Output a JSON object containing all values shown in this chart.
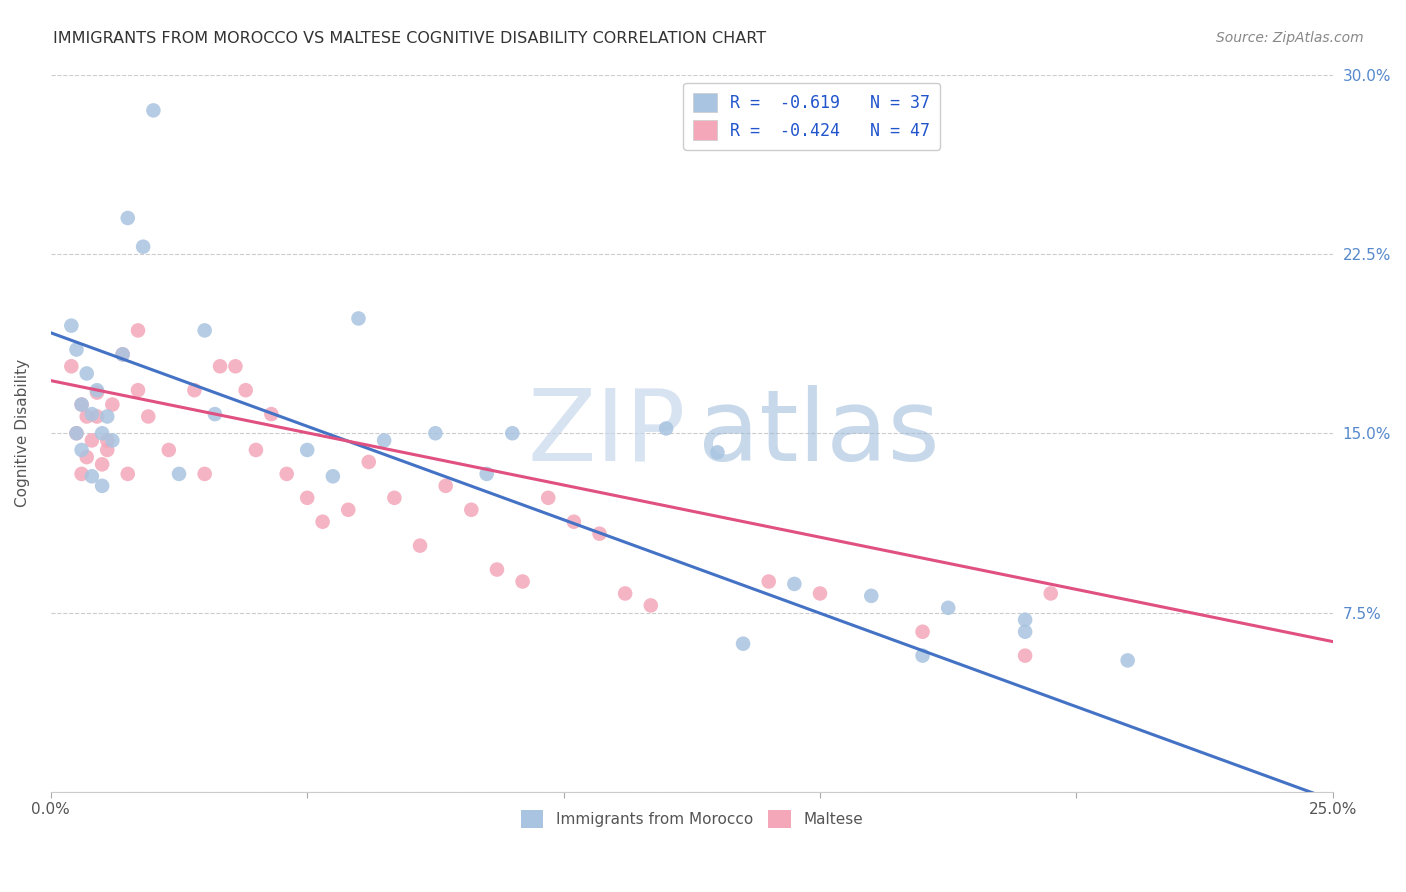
{
  "title": "IMMIGRANTS FROM MOROCCO VS MALTESE COGNITIVE DISABILITY CORRELATION CHART",
  "source": "Source: ZipAtlas.com",
  "ylabel": "Cognitive Disability",
  "color_blue": "#a8c4e0",
  "color_pink": "#f4a7b9",
  "color_blue_line": "#4472c4",
  "color_pink_line": "#e05080",
  "blue_scatter_x": [
    0.02,
    0.015,
    0.018,
    0.004,
    0.005,
    0.007,
    0.009,
    0.006,
    0.008,
    0.011,
    0.005,
    0.01,
    0.012,
    0.014,
    0.006,
    0.008,
    0.01,
    0.03,
    0.032,
    0.025,
    0.06,
    0.065,
    0.05,
    0.075,
    0.055,
    0.09,
    0.085,
    0.12,
    0.13,
    0.145,
    0.16,
    0.175,
    0.19,
    0.21,
    0.135,
    0.19,
    0.17
  ],
  "blue_scatter_y": [
    0.285,
    0.24,
    0.228,
    0.195,
    0.185,
    0.175,
    0.168,
    0.162,
    0.158,
    0.157,
    0.15,
    0.15,
    0.147,
    0.183,
    0.143,
    0.132,
    0.128,
    0.193,
    0.158,
    0.133,
    0.198,
    0.147,
    0.143,
    0.15,
    0.132,
    0.15,
    0.133,
    0.152,
    0.142,
    0.087,
    0.082,
    0.077,
    0.067,
    0.055,
    0.062,
    0.072,
    0.057
  ],
  "pink_scatter_x": [
    0.004,
    0.006,
    0.007,
    0.009,
    0.005,
    0.008,
    0.011,
    0.007,
    0.01,
    0.012,
    0.006,
    0.009,
    0.011,
    0.015,
    0.017,
    0.019,
    0.014,
    0.017,
    0.023,
    0.028,
    0.033,
    0.03,
    0.038,
    0.043,
    0.036,
    0.04,
    0.046,
    0.05,
    0.053,
    0.058,
    0.062,
    0.067,
    0.072,
    0.077,
    0.082,
    0.087,
    0.092,
    0.097,
    0.102,
    0.107,
    0.112,
    0.117,
    0.14,
    0.15,
    0.17,
    0.19,
    0.195
  ],
  "pink_scatter_y": [
    0.178,
    0.162,
    0.157,
    0.167,
    0.15,
    0.147,
    0.143,
    0.14,
    0.137,
    0.162,
    0.133,
    0.157,
    0.147,
    0.133,
    0.168,
    0.157,
    0.183,
    0.193,
    0.143,
    0.168,
    0.178,
    0.133,
    0.168,
    0.158,
    0.178,
    0.143,
    0.133,
    0.123,
    0.113,
    0.118,
    0.138,
    0.123,
    0.103,
    0.128,
    0.118,
    0.093,
    0.088,
    0.123,
    0.113,
    0.108,
    0.083,
    0.078,
    0.088,
    0.083,
    0.067,
    0.057,
    0.083
  ],
  "blue_line_x": [
    0.0,
    0.252
  ],
  "blue_line_y": [
    0.192,
    -0.005
  ],
  "pink_line_x": [
    0.0,
    0.252
  ],
  "pink_line_y": [
    0.172,
    0.062
  ],
  "xlim": [
    0.0,
    0.25
  ],
  "ylim": [
    0.0,
    0.3
  ],
  "yticks": [
    0.0,
    0.075,
    0.15,
    0.225,
    0.3
  ],
  "ytick_labels_right": [
    "",
    "7.5%",
    "15.0%",
    "22.5%",
    "30.0%"
  ],
  "xtick_labels": [
    "0.0%",
    "",
    "",
    "",
    "",
    "25.0%"
  ],
  "legend1_label": "R =  -0.619   N = 37",
  "legend2_label": "R =  -0.424   N = 47",
  "bottom_legend1": "Immigrants from Morocco",
  "bottom_legend2": "Maltese"
}
